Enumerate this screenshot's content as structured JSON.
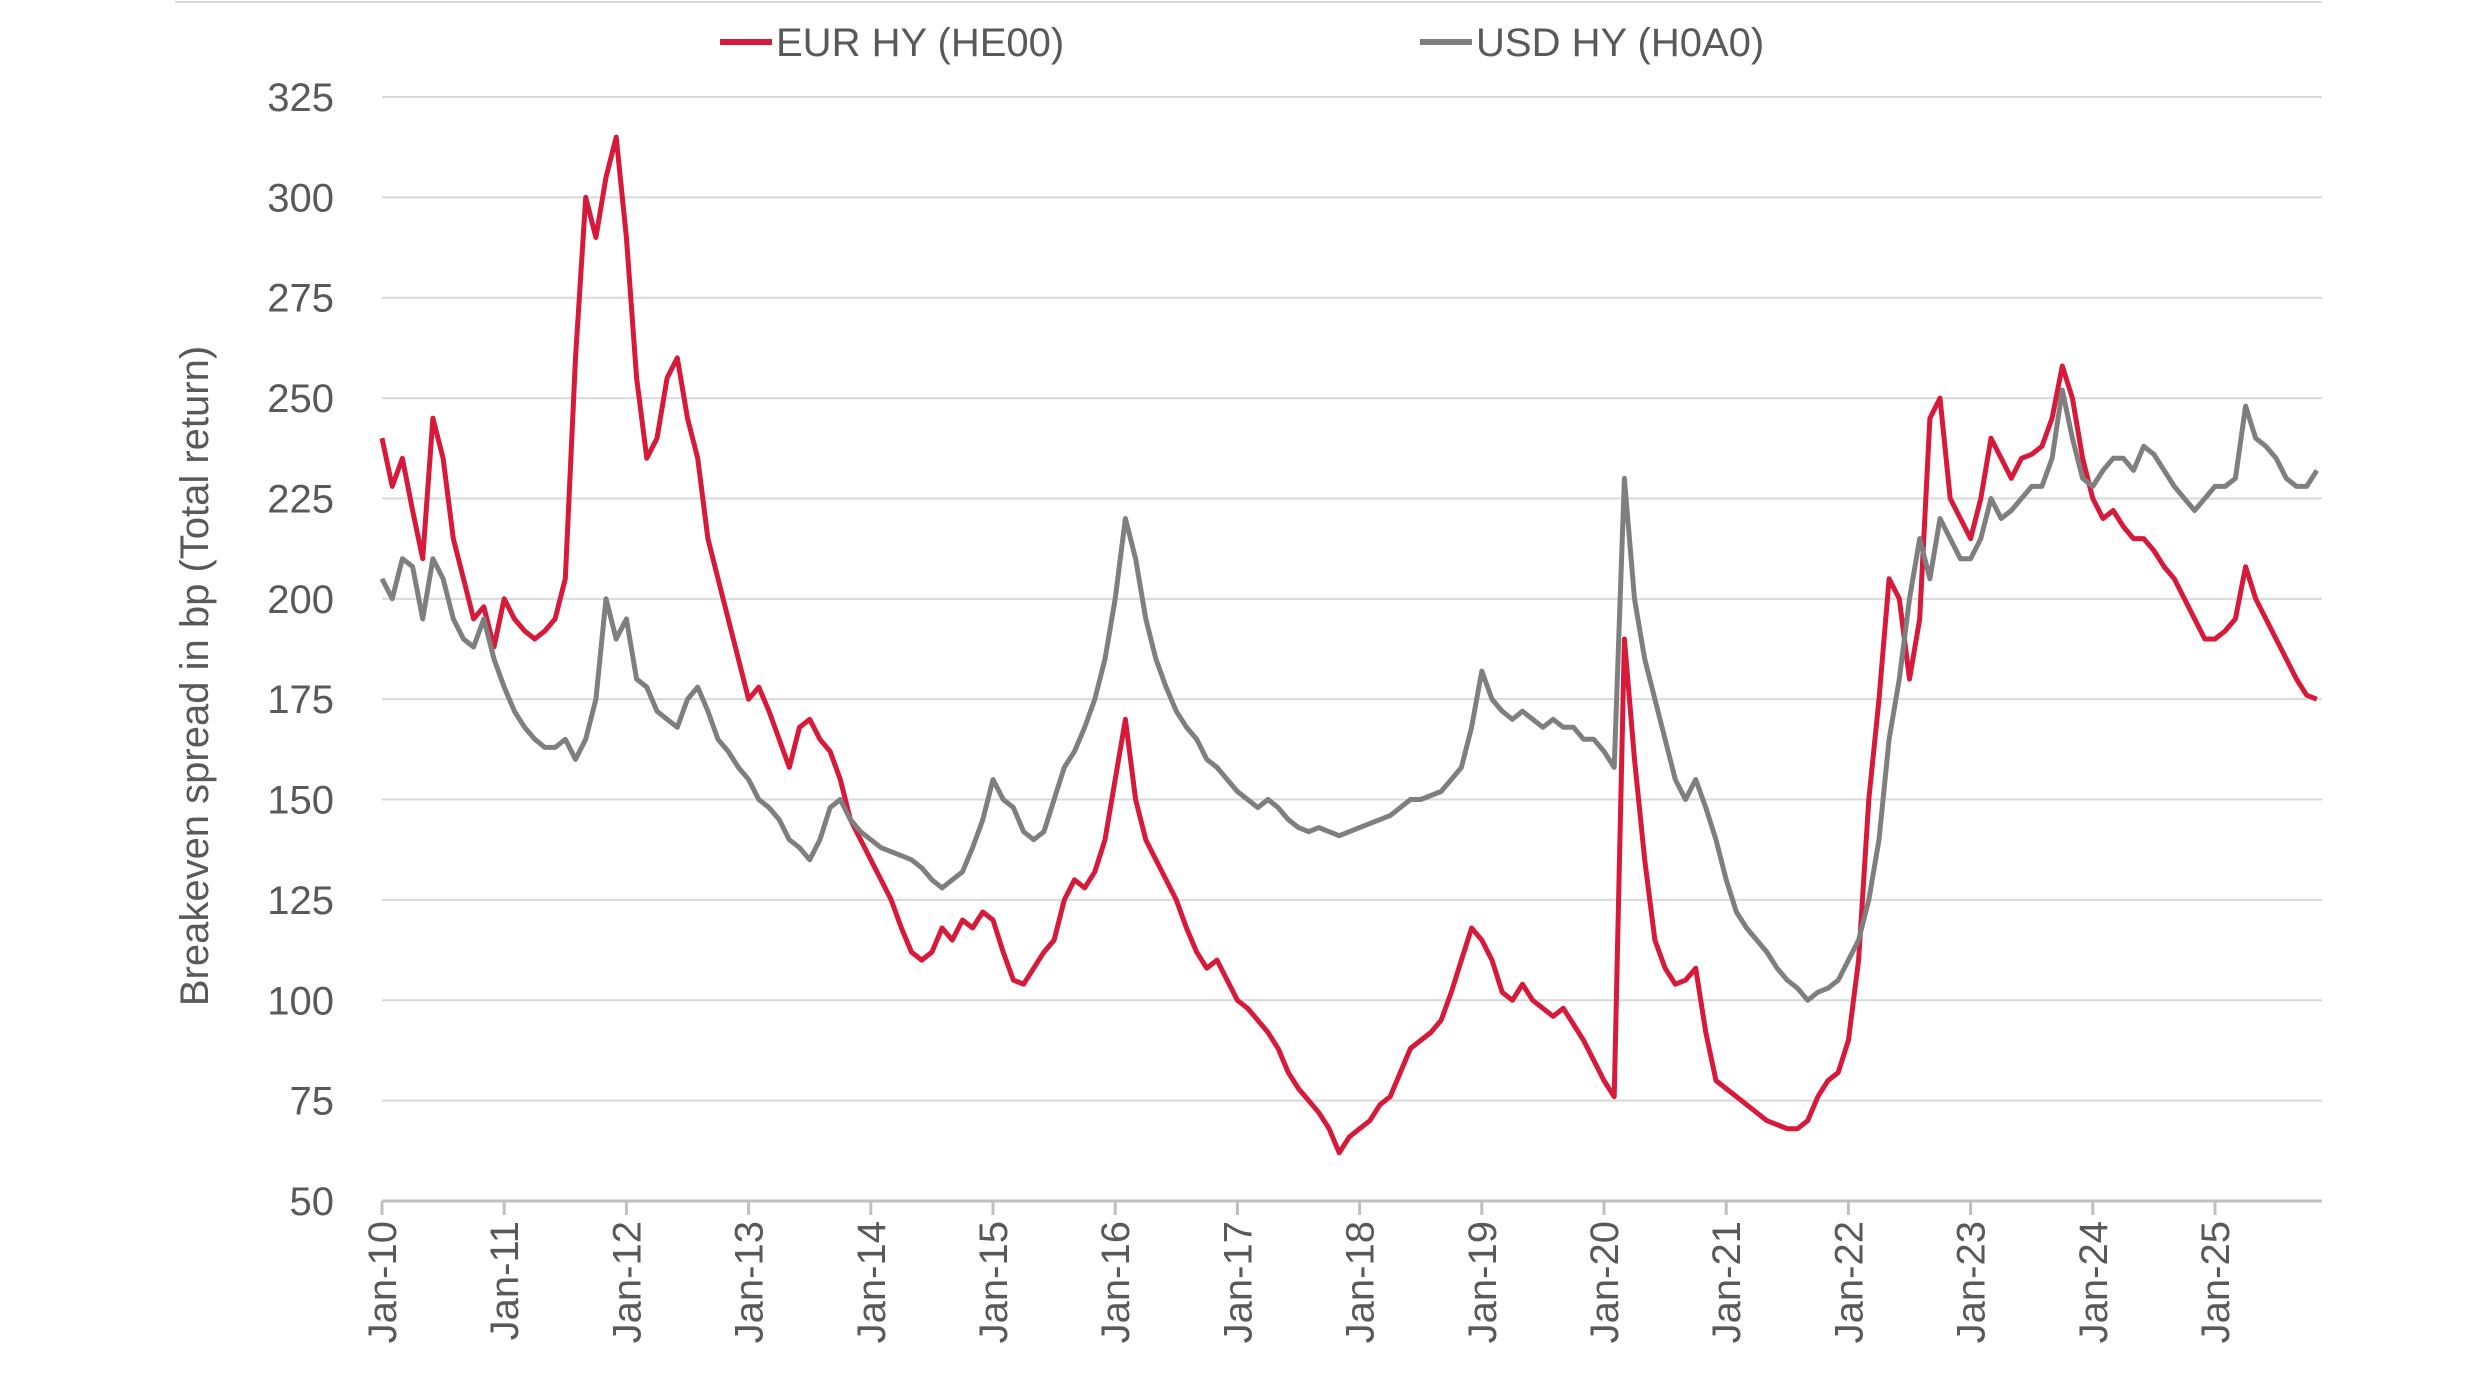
{
  "chart_data": {
    "type": "line",
    "y_label": "Breakeven spread in bp (Total return)",
    "categories": [
      "Jan-10",
      null,
      null,
      null,
      null,
      null,
      null,
      null,
      null,
      null,
      null,
      null,
      "Jan-11",
      null,
      null,
      null,
      null,
      null,
      null,
      null,
      null,
      null,
      null,
      null,
      "Jan-12",
      null,
      null,
      null,
      null,
      null,
      null,
      null,
      null,
      null,
      null,
      null,
      "Jan-13",
      null,
      null,
      null,
      null,
      null,
      null,
      null,
      null,
      null,
      null,
      null,
      "Jan-14",
      null,
      null,
      null,
      null,
      null,
      null,
      null,
      null,
      null,
      null,
      null,
      "Jan-15",
      null,
      null,
      null,
      null,
      null,
      null,
      null,
      null,
      null,
      null,
      null,
      "Jan-16",
      null,
      null,
      null,
      null,
      null,
      null,
      null,
      null,
      null,
      null,
      null,
      "Jan-17",
      null,
      null,
      null,
      null,
      null,
      null,
      null,
      null,
      null,
      null,
      null,
      "Jan-18",
      null,
      null,
      null,
      null,
      null,
      null,
      null,
      null,
      null,
      null,
      null,
      "Jan-19",
      null,
      null,
      null,
      null,
      null,
      null,
      null,
      null,
      null,
      null,
      null,
      "Jan-20",
      null,
      null,
      null,
      null,
      null,
      null,
      null,
      null,
      null,
      null,
      null,
      "Jan-21",
      null,
      null,
      null,
      null,
      null,
      null,
      null,
      null,
      null,
      null,
      null,
      "Jan-22",
      null,
      null,
      null,
      null,
      null,
      null,
      null,
      null,
      null,
      null,
      null,
      "Jan-23",
      null,
      null,
      null,
      null,
      null,
      null,
      null,
      null,
      null,
      null,
      null,
      "Jan-24",
      null,
      null,
      null,
      null,
      null,
      null,
      null,
      null,
      null,
      null,
      null,
      "Jan-25",
      null,
      null,
      null,
      null,
      null,
      null,
      null,
      null,
      null,
      null
    ],
    "series": [
      {
        "name": "EUR HY (HE00)",
        "color": "#d7193a",
        "values": [
          240,
          228,
          235,
          222,
          210,
          245,
          235,
          215,
          205,
          195,
          198,
          188,
          200,
          195,
          192,
          190,
          192,
          195,
          205,
          260,
          300,
          290,
          305,
          315,
          290,
          255,
          235,
          240,
          255,
          260,
          245,
          235,
          215,
          205,
          195,
          185,
          175,
          178,
          172,
          165,
          158,
          168,
          170,
          165,
          162,
          155,
          145,
          140,
          135,
          130,
          125,
          118,
          112,
          110,
          112,
          118,
          115,
          120,
          118,
          122,
          120,
          112,
          105,
          104,
          108,
          112,
          115,
          125,
          130,
          128,
          132,
          140,
          155,
          170,
          150,
          140,
          135,
          130,
          125,
          118,
          112,
          108,
          110,
          105,
          100,
          98,
          95,
          92,
          88,
          82,
          78,
          75,
          72,
          68,
          62,
          66,
          68,
          70,
          74,
          76,
          82,
          88,
          90,
          92,
          95,
          102,
          110,
          118,
          115,
          110,
          102,
          100,
          104,
          100,
          98,
          96,
          98,
          94,
          90,
          85,
          80,
          76,
          190,
          160,
          135,
          115,
          108,
          104,
          105,
          108,
          92,
          80,
          78,
          76,
          74,
          72,
          70,
          69,
          68,
          68,
          70,
          76,
          80,
          82,
          90,
          110,
          150,
          175,
          205,
          200,
          180,
          195,
          245,
          250,
          225,
          220,
          215,
          225,
          240,
          235,
          230,
          235,
          236,
          238,
          245,
          258,
          250,
          235,
          225,
          220,
          222,
          218,
          215,
          215,
          212,
          208,
          205,
          200,
          195,
          190,
          190,
          192,
          195,
          208,
          200,
          195,
          190,
          185,
          180,
          176,
          175
        ]
      },
      {
        "name": "USD HY (H0A0)",
        "color": "#7f7f7f",
        "values": [
          205,
          200,
          210,
          208,
          195,
          210,
          205,
          195,
          190,
          188,
          195,
          185,
          178,
          172,
          168,
          165,
          163,
          163,
          165,
          160,
          165,
          175,
          200,
          190,
          195,
          180,
          178,
          172,
          170,
          168,
          175,
          178,
          172,
          165,
          162,
          158,
          155,
          150,
          148,
          145,
          140,
          138,
          135,
          140,
          148,
          150,
          145,
          142,
          140,
          138,
          137,
          136,
          135,
          133,
          130,
          128,
          130,
          132,
          138,
          145,
          155,
          150,
          148,
          142,
          140,
          142,
          150,
          158,
          162,
          168,
          175,
          185,
          200,
          220,
          210,
          195,
          185,
          178,
          172,
          168,
          165,
          160,
          158,
          155,
          152,
          150,
          148,
          150,
          148,
          145,
          143,
          142,
          143,
          142,
          141,
          142,
          143,
          144,
          145,
          146,
          148,
          150,
          150,
          151,
          152,
          155,
          158,
          168,
          182,
          175,
          172,
          170,
          172,
          170,
          168,
          170,
          168,
          168,
          165,
          165,
          162,
          158,
          230,
          200,
          185,
          175,
          165,
          155,
          150,
          155,
          148,
          140,
          130,
          122,
          118,
          115,
          112,
          108,
          105,
          103,
          100,
          102,
          103,
          105,
          110,
          115,
          125,
          140,
          165,
          180,
          200,
          215,
          205,
          220,
          215,
          210,
          210,
          215,
          225,
          220,
          222,
          225,
          228,
          228,
          235,
          252,
          240,
          230,
          228,
          232,
          235,
          235,
          232,
          238,
          236,
          232,
          228,
          225,
          222,
          225,
          228,
          228,
          230,
          248,
          240,
          238,
          235,
          230,
          228,
          228,
          232
        ]
      }
    ],
    "ylim": [
      50,
      325
    ],
    "yticks": [
      50,
      75,
      100,
      125,
      150,
      175,
      200,
      225,
      250,
      275,
      300,
      325
    ],
    "grid": true,
    "legend": "top"
  }
}
